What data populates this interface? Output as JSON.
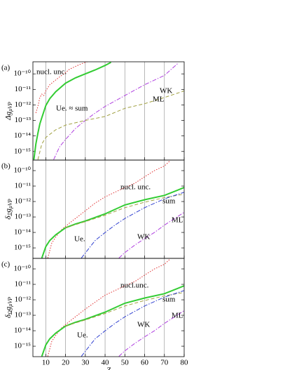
{
  "chart_data": [
    {
      "type": "line",
      "panel_label": "(a)",
      "ylabel": {
        "main": "Δg",
        "sub": "μVP"
      },
      "log_y": true,
      "grid": "x",
      "xlim": [
        3.5,
        80
      ],
      "xticks": [
        10,
        20,
        30,
        40,
        50,
        60,
        70,
        80
      ],
      "ylim": [
        2.8e-16,
        6e-10
      ],
      "yticks": [
        {
          "value": 1e-15,
          "label": "10⁻¹⁵"
        },
        {
          "value": 1e-14,
          "label": "10⁻¹⁴"
        },
        {
          "value": 1e-13,
          "label": "10⁻¹³"
        },
        {
          "value": 1e-12,
          "label": "10⁻¹²"
        },
        {
          "value": 1e-11,
          "label": "10⁻¹¹"
        },
        {
          "value": 1e-10,
          "label": "10⁻¹⁰"
        }
      ],
      "series": [
        {
          "name": "nucl. unc.",
          "color": "#e03030",
          "style": "dotted",
          "x": [
            5,
            6,
            7,
            8,
            9,
            10,
            12,
            15,
            18,
            20,
            22,
            25,
            28,
            31
          ],
          "values": [
            3e-13,
            8e-13,
            3e-12,
            5e-12,
            4e-12,
            8e-12,
            2e-11,
            4e-11,
            8e-11,
            1.2e-10,
            2e-10,
            3e-10,
            4.5e-10,
            6e-10
          ]
        },
        {
          "name": "Ue. ≈ sum",
          "color": "#33cc33",
          "style": "solid",
          "x": [
            4,
            5,
            6,
            7,
            8,
            10,
            12,
            15,
            20,
            25,
            30,
            35,
            40,
            43
          ],
          "values": [
            3e-16,
            3e-15,
            1.5e-14,
            6e-14,
            1.5e-13,
            9e-13,
            2.5e-12,
            7e-12,
            2.5e-11,
            5.5e-11,
            1e-10,
            1.8e-10,
            3.5e-10,
            5.5e-10
          ]
        },
        {
          "name": "WK",
          "color": "#b040e0",
          "style": "dashdot",
          "x": [
            14,
            17,
            20,
            25,
            30,
            35,
            40,
            50,
            60,
            70,
            77
          ],
          "values": [
            3e-16,
            2e-15,
            6e-15,
            3e-14,
            1e-13,
            3e-13,
            8e-13,
            4e-12,
            2e-11,
            8e-11,
            5e-10
          ]
        },
        {
          "name": "ML",
          "color": "#a0a040",
          "style": "dashed",
          "x": [
            6,
            8,
            10,
            15,
            20,
            30,
            40,
            50,
            60,
            70,
            80
          ],
          "values": [
            3e-16,
            3e-15,
            8e-15,
            2.5e-14,
            5e-14,
            1e-13,
            1.8e-13,
            6e-13,
            1.2e-12,
            3e-12,
            8e-12
          ]
        }
      ]
    },
    {
      "type": "line",
      "panel_label": "(b)",
      "ylabel": {
        "main": "δ",
        "sub": "Ξ",
        "tail": "g",
        "sub2": "μVP"
      },
      "log_y": true,
      "grid": "x",
      "xlim": [
        3.5,
        80
      ],
      "xticks": [
        10,
        20,
        30,
        40,
        50,
        60,
        70,
        80
      ],
      "ylim": [
        2.1e-16,
        4.8e-10
      ],
      "yticks": [
        {
          "value": 1e-15,
          "label": "10⁻¹⁵"
        },
        {
          "value": 1e-14,
          "label": "10⁻¹⁴"
        },
        {
          "value": 1e-13,
          "label": "10⁻¹³"
        },
        {
          "value": 1e-12,
          "label": "10⁻¹²"
        },
        {
          "value": 1e-11,
          "label": "10⁻¹¹"
        },
        {
          "value": 1e-10,
          "label": "10⁻¹⁰"
        }
      ],
      "series": [
        {
          "name": "nucl. unc.",
          "color": "#e03030",
          "style": "dotted",
          "x": [
            11,
            13,
            15,
            18,
            20,
            25,
            30,
            35,
            40,
            45,
            50,
            55,
            60,
            65,
            70,
            73
          ],
          "values": [
            2.2e-16,
            2e-15,
            5e-15,
            1.5e-14,
            2.5e-14,
            8e-14,
            2.5e-13,
            8e-13,
            2e-12,
            4e-12,
            8e-12,
            1.5e-11,
            4e-11,
            1e-10,
            2e-10,
            4.5e-10
          ]
        },
        {
          "name": "sum",
          "color": "#33cc33",
          "style": "solid",
          "x": [
            8,
            10,
            12,
            15,
            20,
            25,
            30,
            40,
            50,
            60,
            70,
            80
          ],
          "values": [
            2.2e-16,
            1.2e-15,
            3e-15,
            7e-15,
            2e-14,
            3.5e-14,
            5.5e-14,
            1.6e-13,
            6e-13,
            1.3e-12,
            2.5e-12,
            8e-12
          ]
        },
        {
          "name": "ML",
          "color": "#a0a040",
          "style": "dashed",
          "x": [
            20,
            30,
            40,
            50,
            60,
            70,
            80
          ],
          "values": [
            2e-14,
            5e-14,
            1.3e-13,
            4e-13,
            9e-13,
            1.8e-12,
            3e-12
          ]
        },
        {
          "name": "WK",
          "color": "#b040e0",
          "style": "dashdot",
          "x": [
            47,
            50,
            55,
            60,
            65,
            70,
            80
          ],
          "values": [
            2.2e-16,
            5e-16,
            1.5e-15,
            4e-15,
            1e-14,
            3e-14,
            2e-13
          ]
        },
        {
          "name": "Ue.",
          "color": "#3040d0",
          "style": "dashdot",
          "x": [
            28,
            32,
            35,
            40,
            45,
            50,
            60,
            70,
            80
          ],
          "values": [
            2.2e-16,
            1e-15,
            3e-15,
            1e-14,
            3e-14,
            8e-14,
            4e-13,
            1.5e-12,
            4e-12
          ]
        }
      ]
    },
    {
      "type": "line",
      "panel_label": "(c)",
      "ylabel": {
        "main": "δ",
        "sub": "Ω",
        "tail": "g",
        "sub2": "μVP"
      },
      "log_y": true,
      "grid": "x",
      "xlim": [
        3.5,
        80
      ],
      "xticks": [
        10,
        20,
        30,
        40,
        50,
        60,
        70,
        80
      ],
      "xlabel": "Z",
      "ylim": [
        2.1e-16,
        4.8e-10
      ],
      "yticks": [
        {
          "value": 1e-15,
          "label": "10⁻¹⁵"
        },
        {
          "value": 1e-14,
          "label": "10⁻¹⁴"
        },
        {
          "value": 1e-13,
          "label": "10⁻¹³"
        },
        {
          "value": 1e-12,
          "label": "10⁻¹²"
        },
        {
          "value": 1e-11,
          "label": "10⁻¹¹"
        },
        {
          "value": 1e-10,
          "label": "10⁻¹⁰"
        }
      ],
      "series": [
        {
          "name": "nucl.unc.",
          "color": "#e03030",
          "style": "dotted",
          "x": [
            11,
            13,
            15,
            18,
            20,
            25,
            30,
            35,
            40,
            45,
            50,
            55,
            60,
            65,
            70,
            73
          ],
          "values": [
            2.2e-16,
            2e-15,
            5e-15,
            1.5e-14,
            2.5e-14,
            8e-14,
            2.5e-13,
            7e-13,
            2e-12,
            4e-12,
            8e-12,
            1.5e-11,
            4e-11,
            1e-10,
            2e-10,
            4.5e-10
          ]
        },
        {
          "name": "sum",
          "color": "#33cc33",
          "style": "solid",
          "x": [
            8,
            10,
            12,
            15,
            20,
            25,
            30,
            40,
            50,
            60,
            70,
            80
          ],
          "values": [
            2.2e-16,
            1.2e-15,
            3e-15,
            7e-15,
            2e-14,
            3.5e-14,
            5.5e-14,
            1.6e-13,
            6e-13,
            1.3e-12,
            2.5e-12,
            8e-12
          ]
        },
        {
          "name": "ML",
          "color": "#a0a040",
          "style": "dashed",
          "x": [
            20,
            30,
            40,
            50,
            60,
            70,
            80
          ],
          "values": [
            2e-14,
            5e-14,
            1.3e-13,
            4e-13,
            9e-13,
            1.8e-12,
            3e-12
          ]
        },
        {
          "name": "WK",
          "color": "#b040e0",
          "style": "dashdot",
          "x": [
            47,
            50,
            55,
            60,
            65,
            70,
            80
          ],
          "values": [
            2.2e-16,
            5e-16,
            1.5e-15,
            4e-15,
            1e-14,
            3e-14,
            2e-13
          ]
        },
        {
          "name": "Ue.",
          "color": "#3040d0",
          "style": "dashdot",
          "x": [
            28,
            32,
            35,
            40,
            45,
            50,
            60,
            70,
            80
          ],
          "values": [
            2.2e-16,
            1e-15,
            3e-15,
            1e-14,
            3e-14,
            8e-14,
            4e-13,
            1.5e-12,
            4e-12
          ]
        }
      ]
    }
  ]
}
